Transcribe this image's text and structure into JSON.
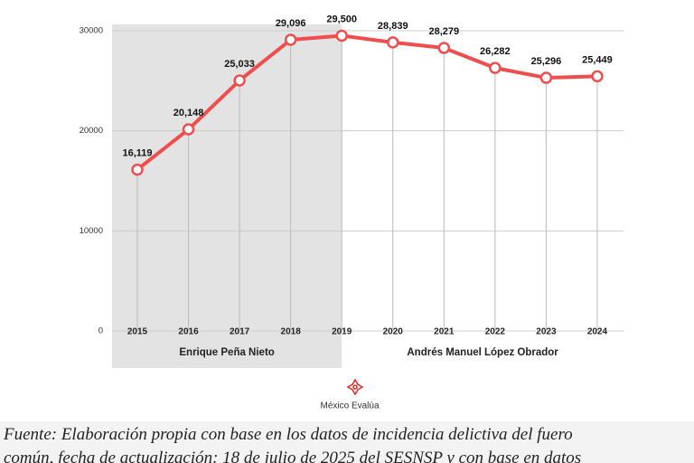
{
  "chart_data": {
    "type": "line",
    "categories": [
      "2015",
      "2016",
      "2017",
      "2018",
      "2019",
      "2020",
      "2021",
      "2022",
      "2023",
      "2024"
    ],
    "series": [
      {
        "color": "#f04e4e",
        "values": [
          16119,
          20148,
          25033,
          29096,
          29500,
          28839,
          28279,
          26282,
          25296,
          25449
        ],
        "value_labels": [
          "16,119",
          "20,148",
          "25,033",
          "29,096",
          "29,500",
          "28,839",
          "28,279",
          "26,282",
          "25,296",
          "25,449"
        ]
      }
    ],
    "ylim": [
      0,
      30000
    ],
    "yticks": [
      0,
      10000,
      20000,
      30000
    ],
    "grid": true,
    "periods": [
      {
        "name": "Enrique Peña Nieto",
        "start": "2015",
        "end": "2019",
        "shaded": true
      },
      {
        "name": "Andrés Manuel López Obrador",
        "start": "2020",
        "end": "2024",
        "shaded": false
      }
    ]
  },
  "logo": "México Evalúa",
  "caption": [
    "Fuente: Elaboración propia con base en los datos de incidencia delictiva del fuero",
    "común, fecha de actualización: 18 de julio de 2025 del SESNSP y con base en datos"
  ]
}
